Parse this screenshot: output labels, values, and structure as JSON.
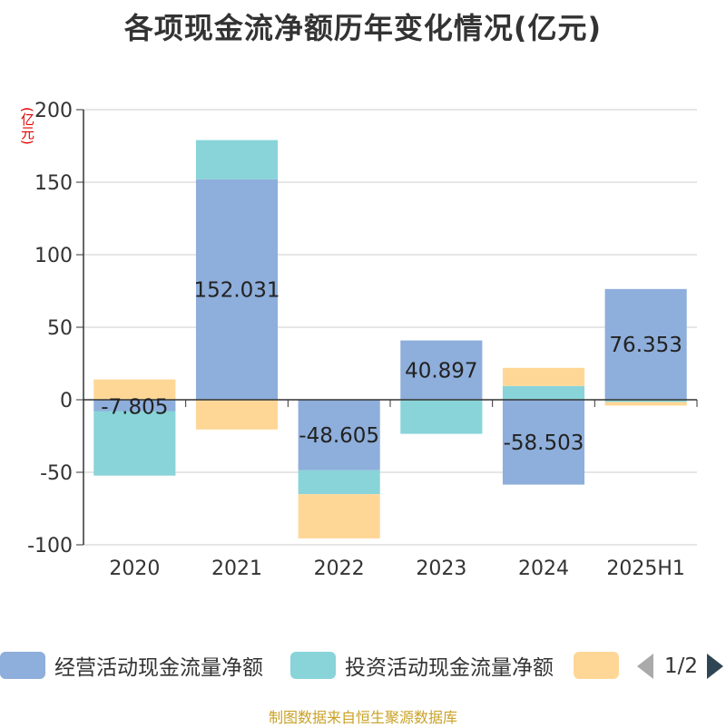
{
  "chart_data": {
    "type": "bar",
    "stacked": true,
    "title": "各项现金流净额历年变化情况(亿元)",
    "ylabel": "(亿元)",
    "categories": [
      "2020",
      "2021",
      "2022",
      "2023",
      "2024",
      "2025H1"
    ],
    "ylim": [
      -100,
      200
    ],
    "yticks": [
      200,
      150,
      100,
      50,
      0,
      -50,
      -100
    ],
    "grid": true,
    "series": [
      {
        "name": "经营活动现金流量净额",
        "color": "#8eaedb",
        "values": [
          -7.805,
          152.031,
          -48.605,
          40.897,
          -58.503,
          76.353
        ],
        "labels": [
          "-7.805",
          "152.031",
          "-48.605",
          "40.897",
          "-58.503",
          "76.353"
        ]
      },
      {
        "name": "投资活动现金流量净额",
        "color": "#88d4d9",
        "values": [
          -44.5,
          27.0,
          -16.5,
          -23.5,
          9.5,
          -1.5
        ]
      },
      {
        "name": "",
        "color": "#fed797",
        "values": [
          14.0,
          -20.5,
          -30.5,
          0.0,
          12.5,
          -2.5
        ]
      }
    ],
    "legend": {
      "position": "bottom",
      "pager": "1/2"
    }
  },
  "source_note": "制图数据来自恒生聚源数据库"
}
